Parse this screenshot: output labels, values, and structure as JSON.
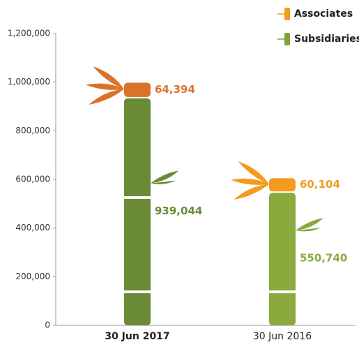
{
  "chart_data": {
    "type": "stacked_bar",
    "categories": [
      "30 Jun 2017",
      "30 Jun 2016"
    ],
    "series": [
      {
        "name": "Subsidiaries",
        "color": "#7fa23a",
        "colors": [
          "#6b8a35",
          "#8aaa3e"
        ],
        "values": [
          939044,
          550740
        ],
        "value_labels": [
          "939,044",
          "550,740"
        ]
      },
      {
        "name": "Associates",
        "color": "#f39a1f",
        "colors": [
          "#d9722a",
          "#f39a1f"
        ],
        "values": [
          64394,
          60104
        ],
        "value_labels": [
          "64,394",
          "60,104"
        ]
      }
    ],
    "ylim": [
      0,
      1200000
    ],
    "yticks": [
      0,
      {
        "value": 200000,
        "label": "200,000"
      },
      {
        "value": 400000,
        "label": "400,000"
      },
      {
        "value": 600000,
        "label": "600,000"
      },
      {
        "value": 800000,
        "label": "800,000"
      },
      {
        "value": 1000000,
        "label": "1,000,000"
      },
      {
        "value": 1200000,
        "label": "1,200,000"
      }
    ],
    "legend": "top-right"
  }
}
